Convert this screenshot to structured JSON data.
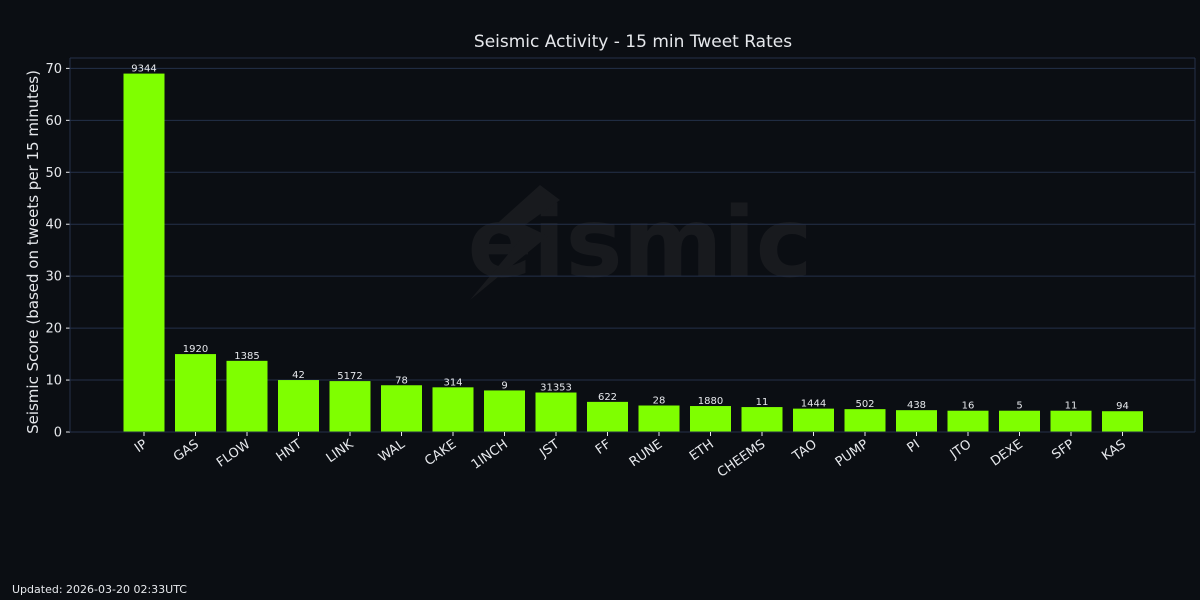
{
  "footer": {
    "updated": "Updated: 2026-03-20 02:33UTC"
  },
  "watermark": "eismic",
  "colors": {
    "background": "#0b0e13",
    "bar": "#7fff00",
    "grid": "#24304a",
    "text": "#e6e8ec",
    "watermark": "#181a1e"
  },
  "chart_data": {
    "type": "bar",
    "title": "Seismic Activity - 15 min Tweet Rates",
    "xlabel": "",
    "ylabel": "Seismic Score (based on tweets per 15 minutes)",
    "ylim": [
      0,
      72
    ],
    "yticks": [
      0,
      10,
      20,
      30,
      40,
      50,
      60,
      70
    ],
    "grid": true,
    "categories": [
      "IP",
      "GAS",
      "FLOW",
      "HNT",
      "LINK",
      "WAL",
      "CAKE",
      "1INCH",
      "JST",
      "FF",
      "RUNE",
      "ETH",
      "CHEEMS",
      "TAO",
      "PUMP",
      "PI",
      "JTO",
      "DEXE",
      "SFP",
      "KAS"
    ],
    "values": [
      69,
      15,
      13.7,
      10,
      9.8,
      9,
      8.6,
      8,
      7.6,
      5.8,
      5.1,
      5,
      4.8,
      4.5,
      4.4,
      4.2,
      4.1,
      4.1,
      4.1,
      4
    ],
    "data_labels": [
      "9344",
      "1920",
      "1385",
      "42",
      "5172",
      "78",
      "314",
      "9",
      "31353",
      "622",
      "28",
      "1880",
      "11",
      "1444",
      "502",
      "438",
      "16",
      "5",
      "11",
      "94"
    ]
  }
}
